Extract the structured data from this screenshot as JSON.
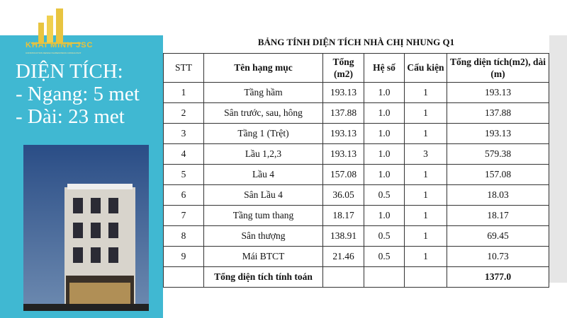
{
  "logo": {
    "name": "KHAI MINH JSC",
    "tagline": "CONSTRUCTION DESIGN SUPERVISION CONSULTANT"
  },
  "info": {
    "heading": "DIỆN TÍCH:",
    "width": "- Ngang: 5 met",
    "length": "- Dài: 23 met"
  },
  "table": {
    "title": "BẢNG TÍNH DIỆN TÍCH NHÀ CHỊ NHUNG Q1",
    "headers": [
      "STT",
      "Tên hạng mục",
      "Tổng (m2)",
      "Hệ số",
      "Cấu kiện",
      "Tổng diện tích(m2), dài (m)"
    ],
    "rows": [
      [
        "1",
        "Tầng hầm",
        "193.13",
        "1.0",
        "1",
        "193.13"
      ],
      [
        "2",
        "Sân trước, sau, hông",
        "137.88",
        "1.0",
        "1",
        "137.88"
      ],
      [
        "3",
        "Tầng 1 (Trệt)",
        "193.13",
        "1.0",
        "1",
        "193.13"
      ],
      [
        "4",
        "Lầu 1,2,3",
        "193.13",
        "1.0",
        "3",
        "579.38"
      ],
      [
        "5",
        "Lầu 4",
        "157.08",
        "1.0",
        "1",
        "157.08"
      ],
      [
        "6",
        "Sân Lầu 4",
        "36.05",
        "0.5",
        "1",
        "18.03"
      ],
      [
        "7",
        "Tầng tum thang",
        "18.17",
        "1.0",
        "1",
        "18.17"
      ],
      [
        "8",
        "Sân thượng",
        "138.91",
        "0.5",
        "1",
        "69.45"
      ],
      [
        "9",
        "Mái BTCT",
        "21.46",
        "0.5",
        "1",
        "10.73"
      ]
    ],
    "total_label": "Tổng diện tích tính toán",
    "total_value": "1377.0"
  }
}
